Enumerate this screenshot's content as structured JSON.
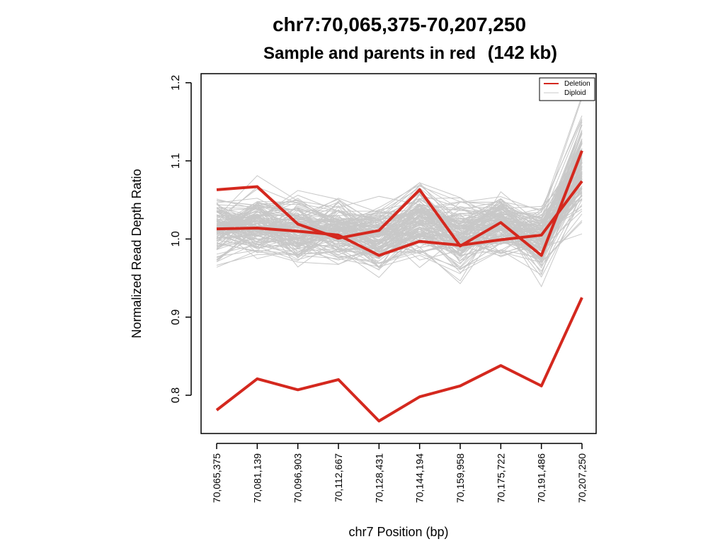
{
  "chart_data": {
    "type": "line",
    "title": "chr7:70,065,375-70,207,250",
    "subtitle_prefix": "Sample and parents in red",
    "subtitle_size": "(142 kb)",
    "xlabel": "chr7 Position (bp)",
    "ylabel": "Normalized Read Depth Ratio",
    "ylim": [
      0.75,
      1.2
    ],
    "yticks": [
      "0.8",
      "0.9",
      "1.0",
      "1.1",
      "1.2"
    ],
    "x_labels": [
      "70,065,375",
      "70,081,139",
      "70,096,903",
      "70,112,667",
      "70,128,431",
      "70,144,194",
      "70,159,958",
      "70,175,722",
      "70,191,486",
      "70,207,250"
    ],
    "legend": {
      "position": "top-right",
      "entries": [
        {
          "label": "Deletion",
          "color": "#d4281e"
        },
        {
          "label": "Diploid",
          "color": "#c8c8c8"
        }
      ]
    },
    "series": [
      {
        "color": "#d4281e",
        "values": [
          0.781,
          0.821,
          0.807,
          0.82,
          0.767,
          0.798,
          0.812,
          0.838,
          0.812,
          0.925
        ]
      },
      {
        "color": "#d4281e",
        "values": [
          1.063,
          1.067,
          1.019,
          1.001,
          1.011,
          1.063,
          0.991,
          1.021,
          0.979,
          1.113
        ]
      },
      {
        "color": "#d4281e",
        "values": [
          1.013,
          1.014,
          1.01,
          1.005,
          0.979,
          0.997,
          0.992,
          0.999,
          1.005,
          1.074
        ]
      }
    ],
    "diploid_band": {
      "color": "#c8c8c8",
      "center": [
        1.012,
        1.018,
        1.01,
        1.013,
        1.003,
        1.025,
        1.005,
        1.02,
        0.998,
        1.095
      ],
      "spread": [
        0.028,
        0.03,
        0.03,
        0.028,
        0.03,
        0.032,
        0.03,
        0.028,
        0.032,
        0.045
      ],
      "line_count": 140
    },
    "grid": false
  }
}
